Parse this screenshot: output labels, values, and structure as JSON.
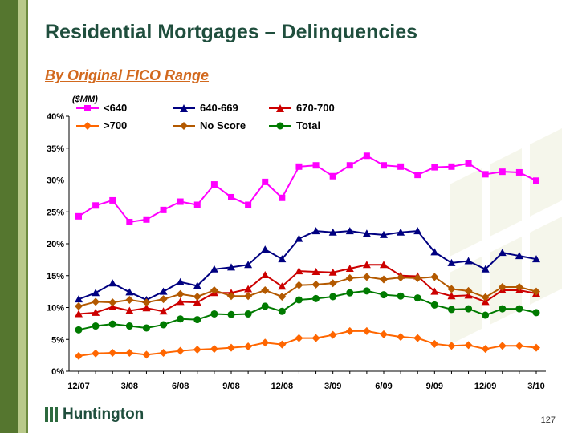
{
  "header": {
    "title": "Residential Mortgages – Delinquencies",
    "subtitle": "By Original FICO Range",
    "unit": "($MM)"
  },
  "footer": {
    "brand": "Huntington",
    "page_number": "127"
  },
  "chart_data": {
    "type": "line",
    "x": [
      "12/07",
      "1/08",
      "2/08",
      "3/08",
      "4/08",
      "5/08",
      "6/08",
      "7/08",
      "8/08",
      "9/08",
      "10/08",
      "11/08",
      "12/08",
      "1/09",
      "2/09",
      "3/09",
      "4/09",
      "5/09",
      "6/09",
      "7/09",
      "8/09",
      "9/09",
      "10/09",
      "11/09",
      "12/09",
      "1/10",
      "2/10",
      "3/10"
    ],
    "x_tick_labels": [
      "12/07",
      "3/08",
      "6/08",
      "9/08",
      "12/08",
      "3/09",
      "6/09",
      "9/09",
      "12/09",
      "3/10"
    ],
    "ylim": [
      0,
      40
    ],
    "y_ticks": [
      "0%",
      "5%",
      "10%",
      "15%",
      "20%",
      "25%",
      "30%",
      "35%",
      "40%"
    ],
    "legend_position": "top",
    "grid": false,
    "series": [
      {
        "name": "<640",
        "color": "#ff00ff",
        "marker": "square",
        "values": [
          24.3,
          26.0,
          26.8,
          23.4,
          23.8,
          25.3,
          26.6,
          26.1,
          29.3,
          27.3,
          26.1,
          29.7,
          27.2,
          32.1,
          32.3,
          30.6,
          32.3,
          33.8,
          32.3,
          32.1,
          30.8,
          32.0,
          32.1,
          32.6,
          30.9,
          31.3,
          31.2,
          29.9
        ]
      },
      {
        "name": "640-669",
        "color": "#000080",
        "marker": "triangle",
        "values": [
          11.3,
          12.3,
          13.8,
          12.4,
          11.2,
          12.5,
          14.0,
          13.4,
          16.0,
          16.3,
          16.7,
          19.1,
          17.6,
          20.8,
          22.0,
          21.8,
          22.0,
          21.6,
          21.4,
          21.8,
          22.0,
          18.7,
          17.0,
          17.3,
          16.0,
          18.6,
          18.1,
          17.6
        ]
      },
      {
        "name": "670-700",
        "color": "#cc0000",
        "marker": "triangle",
        "values": [
          9.0,
          9.2,
          10.1,
          9.5,
          9.9,
          9.4,
          10.9,
          10.8,
          12.3,
          12.3,
          12.9,
          15.1,
          13.3,
          15.7,
          15.6,
          15.5,
          16.1,
          16.7,
          16.7,
          15.0,
          14.9,
          12.5,
          11.8,
          11.9,
          10.9,
          12.7,
          12.7,
          12.2
        ]
      },
      {
        "name": ">700",
        "color": "#ff6600",
        "marker": "diamond",
        "values": [
          2.4,
          2.8,
          2.9,
          2.9,
          2.6,
          2.9,
          3.2,
          3.4,
          3.5,
          3.7,
          3.9,
          4.5,
          4.2,
          5.2,
          5.2,
          5.7,
          6.3,
          6.3,
          5.8,
          5.4,
          5.2,
          4.3,
          4.0,
          4.1,
          3.5,
          4.0,
          4.0,
          3.7
        ]
      },
      {
        "name": "No Score",
        "color": "#b35900",
        "marker": "diamond",
        "values": [
          10.2,
          10.9,
          10.8,
          11.2,
          10.8,
          11.3,
          12.1,
          11.7,
          12.7,
          11.8,
          11.8,
          12.7,
          11.7,
          13.5,
          13.6,
          13.8,
          14.6,
          14.8,
          14.4,
          14.7,
          14.6,
          14.8,
          12.9,
          12.6,
          11.6,
          13.2,
          13.2,
          12.5
        ]
      },
      {
        "name": "Total",
        "color": "#007a00",
        "marker": "circle",
        "values": [
          6.5,
          7.1,
          7.4,
          7.1,
          6.8,
          7.3,
          8.2,
          8.1,
          9.0,
          8.9,
          9.0,
          10.2,
          9.4,
          11.2,
          11.4,
          11.7,
          12.3,
          12.6,
          12.0,
          11.8,
          11.5,
          10.4,
          9.7,
          9.8,
          8.8,
          9.8,
          9.8,
          9.2
        ]
      }
    ]
  }
}
